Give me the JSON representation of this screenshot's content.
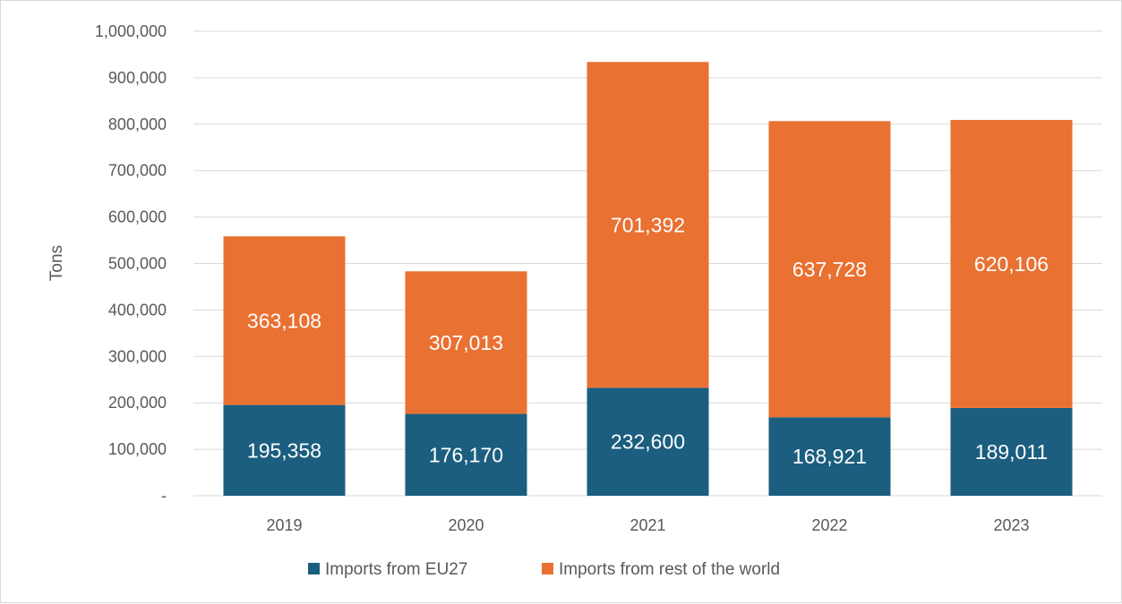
{
  "chart_data": {
    "type": "bar",
    "stacked": true,
    "categories": [
      "2019",
      "2020",
      "2021",
      "2022",
      "2023"
    ],
    "series": [
      {
        "name": "Imports from EU27",
        "values": [
          195358,
          176170,
          232600,
          168921,
          189011
        ],
        "labels": [
          "195,358",
          "176,170",
          "232,600",
          "168,921",
          "189,011"
        ],
        "color": "#1b5e7f"
      },
      {
        "name": "Imports from rest of the world",
        "values": [
          363108,
          307013,
          701392,
          637728,
          620106
        ],
        "labels": [
          "363,108",
          "307,013",
          "701,392",
          "637,728",
          "620,106"
        ],
        "color": "#e97132"
      }
    ],
    "ylabel": "Tons",
    "xlabel": "",
    "title": "",
    "ylim": [
      0,
      1000000
    ],
    "yticks": [
      0,
      100000,
      200000,
      300000,
      400000,
      500000,
      600000,
      700000,
      800000,
      900000,
      1000000
    ],
    "ytick_labels": [
      "-",
      "100,000",
      "200,000",
      "300,000",
      "400,000",
      "500,000",
      "600,000",
      "700,000",
      "800,000",
      "900,000",
      "1,000,000"
    ],
    "grid": true,
    "legend_position": "bottom",
    "grid_color": "#d9d9d9",
    "label_color": "#ffffff",
    "axis_text_color": "#595959"
  }
}
